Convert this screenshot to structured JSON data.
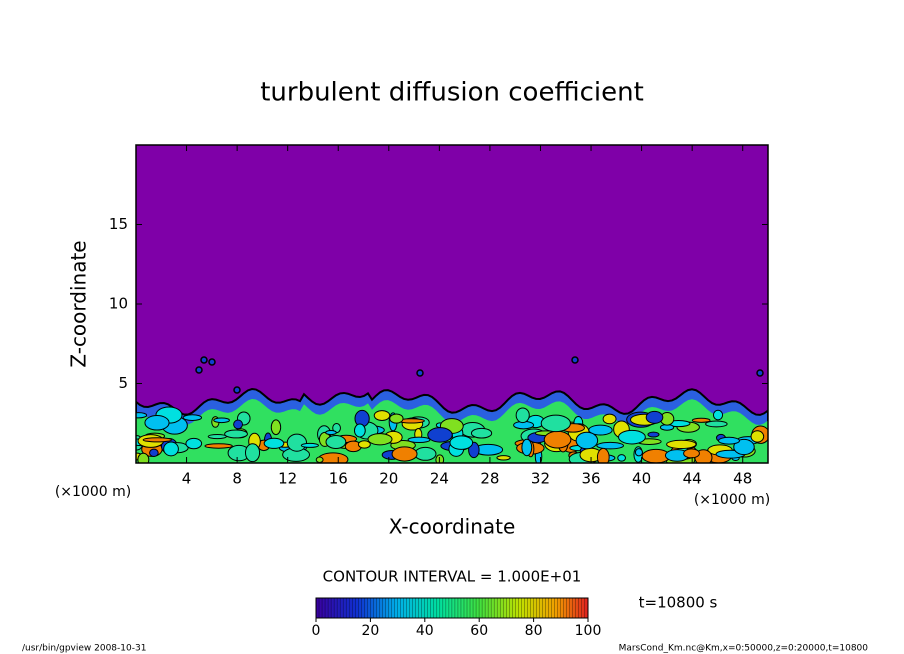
{
  "chart_data": {
    "type": "contour",
    "title": "turbulent diffusion coefficient",
    "xlabel": "X-coordinate",
    "ylabel": "Z-coordinate",
    "xunit": "(×1000 m)",
    "yunit": "(×1000 m)",
    "xlim": [
      0,
      50
    ],
    "ylim": [
      0,
      20
    ],
    "xticks": [
      4,
      8,
      12,
      16,
      20,
      24,
      28,
      32,
      36,
      40,
      44,
      48
    ],
    "yticks": [
      5,
      10,
      15
    ],
    "contour_interval": "CONTOUR INTERVAL = 1.000E+01",
    "colorbar": {
      "lim": [
        0,
        100
      ],
      "ticks": [
        0,
        20,
        40,
        60,
        80,
        100
      ]
    },
    "time_label": "t=10800 s",
    "footer_left": "/usr/bin/gpview   2008-10-31",
    "footer_right": "MarsCond_Km.nc@Km,x=0:50000,z=0:20000,t=10800"
  }
}
